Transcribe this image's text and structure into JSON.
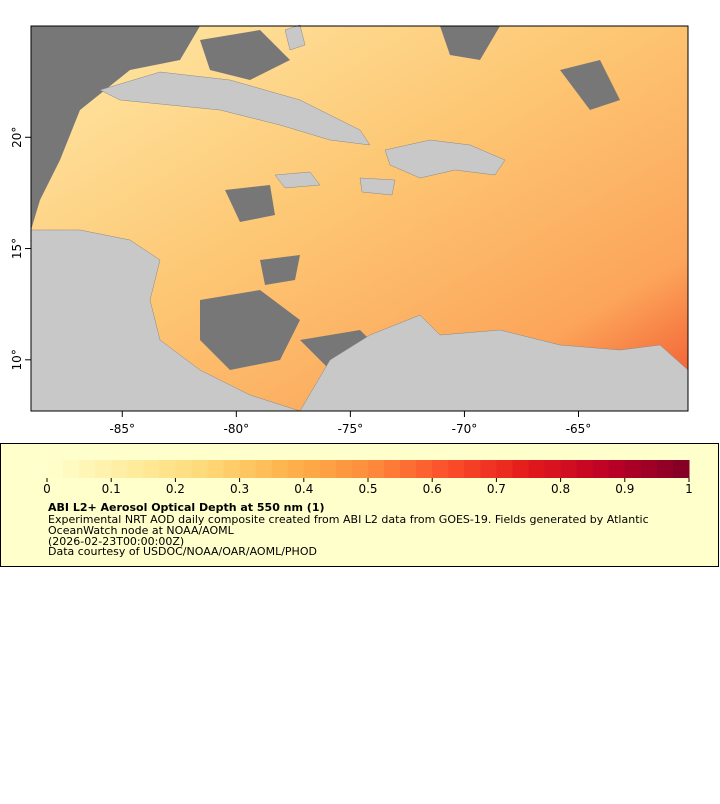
{
  "map": {
    "xlim": [
      -89,
      -60.2
    ],
    "ylim": [
      7.7,
      25
    ],
    "xticks": [
      {
        "value": -85,
        "label": "-85°"
      },
      {
        "value": -80,
        "label": "-80°"
      },
      {
        "value": -75,
        "label": "-75°"
      },
      {
        "value": -70,
        "label": "-70°"
      },
      {
        "value": -65,
        "label": "-65°"
      }
    ],
    "yticks": [
      {
        "value": 10,
        "label": "10°"
      },
      {
        "value": 15,
        "label": "15°"
      },
      {
        "value": 20,
        "label": "20°"
      }
    ]
  },
  "legend": {
    "colorbar": {
      "range": [
        0,
        1
      ],
      "ticks": [
        0,
        0.1,
        0.2,
        0.3,
        0.4,
        0.5,
        0.6,
        0.7,
        0.8,
        0.9,
        1
      ],
      "colors": [
        "#ffffcc",
        "#ffeda0",
        "#fed976",
        "#feb24c",
        "#fd8d3c",
        "#fc4e2a",
        "#e31a1c",
        "#bd0026",
        "#800026"
      ]
    },
    "title": "ABI L2+ Aerosol Optical Depth at 550 nm (1)",
    "lines": [
      "Experimental NRT AOD daily composite created from ABI L2 data from GOES-19. Fields generated by Atlantic",
      "OceanWatch node at NOAA/AOML",
      "(2026-02-23T00:00:00Z)",
      "Data courtesy of USDOC/NOAA/OAR/AOML/PHOD"
    ]
  }
}
